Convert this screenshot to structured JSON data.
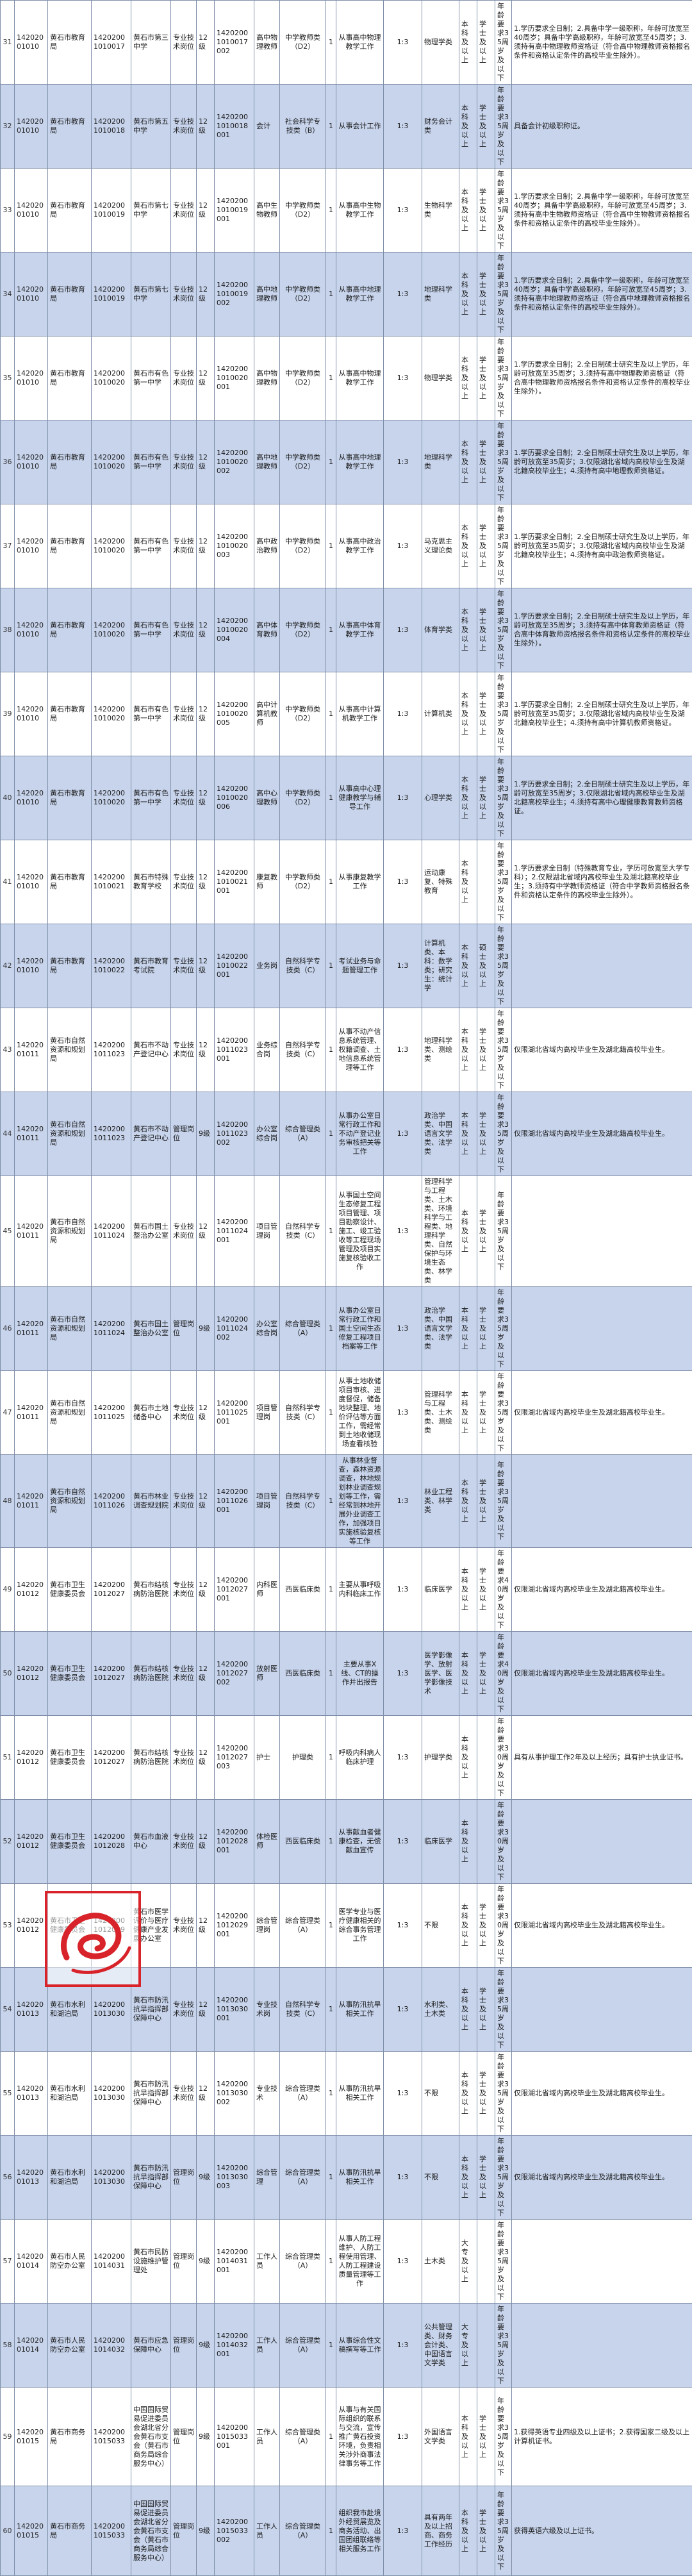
{
  "rows": [
    [
      "31",
      "14202001010",
      "黄石市教育局",
      "14202001010017",
      "黄石市第三中学",
      "专业技术岗位",
      "12级",
      "14202001010017002",
      "高中物理教师",
      "中学教师类（D2）",
      "1",
      "从事高中物理教学工作",
      "1:3",
      "物理学类",
      "本科及以上",
      "学士及以上",
      "年龄要求35周岁及以下",
      "1.学历要求全日制；2.具备中学一级职称，年龄可放宽至40周岁；具备中学高级职称，年龄可放宽至45周岁；3.须持有高中物理教师资格证（符合高中物理教师资格报名条件和资格认定条件的高校毕业生除外）。"
    ],
    [
      "32",
      "14202001010",
      "黄石市教育局",
      "14202001010018",
      "黄石市第五中学",
      "专业技术岗位",
      "12级",
      "14202001010018001",
      "会计",
      "社会科学专技类（B）",
      "1",
      "从事会计工作",
      "1:3",
      "财务会计类",
      "本科及以上",
      "学士及以上",
      "年龄要求35周岁及以下",
      "具备会计初级职称证。"
    ],
    [
      "33",
      "14202001010",
      "黄石市教育局",
      "14202001010019",
      "黄石市第七中学",
      "专业技术岗位",
      "12级",
      "14202001010019001",
      "高中生物教师",
      "中学教师类（D2）",
      "1",
      "从事高中生物教学工作",
      "1:3",
      "生物科学类",
      "本科及以上",
      "学士及以上",
      "年龄要求35周岁及以下",
      "1.学历要求全日制；2.具备中学一级职称，年龄可放宽至40周岁；具备中学高级职称，年龄可放宽至45周岁；3.须持有高中生物教师资格证（符合高中生物教师资格报名条件和资格认定条件的高校毕业生除外）。"
    ],
    [
      "34",
      "14202001010",
      "黄石市教育局",
      "14202001010019",
      "黄石市第七中学",
      "专业技术岗位",
      "12级",
      "14202001010019002",
      "高中地理教师",
      "中学教师类（D2）",
      "1",
      "从事高中地理教学工作",
      "1:3",
      "地理科学类",
      "本科及以上",
      "学士及以上",
      "年龄要求35周岁及以下",
      "1.学历要求全日制；2.具备中学一级职称，年龄可放宽至40周岁；具备中学高级职称，年龄可放宽至45周岁；3.须持有高中地理教师资格证（符合高中地理教师资格报名条件和资格认定条件的高校毕业生除外）。"
    ],
    [
      "35",
      "14202001010",
      "黄石市教育局",
      "14202001010020",
      "黄石市有色第一中学",
      "专业技术岗位",
      "12级",
      "14202001010020001",
      "高中物理教师",
      "中学教师类（D2）",
      "1",
      "从事高中物理教学工作",
      "1:3",
      "物理学类",
      "本科及以上",
      "学士及以上",
      "年龄要求35周岁及以下",
      "1.学历要求全日制；2.全日制硕士研究生及以上学历，年龄可放宽至35周岁；3.须持有高中物理教师资格证（符合高中物理教师资格报名条件和资格认定条件的高校毕业生除外）。"
    ],
    [
      "36",
      "14202001010",
      "黄石市教育局",
      "14202001010020",
      "黄石市有色第一中学",
      "专业技术岗位",
      "12级",
      "14202001010020002",
      "高中地理教师",
      "中学教师类（D2）",
      "1",
      "从事高中地理教学工作",
      "1:3",
      "地理科学类",
      "本科及以上",
      "学士及以上",
      "年龄要求35周岁及以下",
      "1.学历要求全日制；2.全日制硕士研究生及以上学历，年龄可放宽至35周岁；3.仅限湖北省域内高校毕业生及湖北籍高校毕业生；4.须持有高中地理教师资格证。"
    ],
    [
      "37",
      "14202001010",
      "黄石市教育局",
      "14202001010020",
      "黄石市有色第一中学",
      "专业技术岗位",
      "12级",
      "14202001010020003",
      "高中政治教师",
      "中学教师类（D2）",
      "1",
      "从事高中政治教学工作",
      "1:3",
      "马克思主义理论类",
      "本科及以上",
      "学士及以上",
      "年龄要求35周岁及以下",
      "1.学历要求全日制；2.全日制硕士研究生及以上学历，年龄可放宽至35周岁；3.仅限湖北省域内高校毕业生及湖北籍高校毕业生；4.须持有高中政治教师资格证。"
    ],
    [
      "38",
      "14202001010",
      "黄石市教育局",
      "14202001010020",
      "黄石市有色第一中学",
      "专业技术岗位",
      "12级",
      "14202001010020004",
      "高中体育教师",
      "中学教师类（D2）",
      "1",
      "从事高中体育教学工作",
      "1:3",
      "体育学类",
      "本科及以上",
      "学士及以上",
      "年龄要求35周岁及以下",
      "1.学历要求全日制；2.全日制硕士研究生及以上学历，年龄可放宽至35周岁；3.须持有高中体育教师资格证（符合高中体育教师资格报名条件和资格认定条件的高校毕业生除外）。"
    ],
    [
      "39",
      "14202001010",
      "黄石市教育局",
      "14202001010020",
      "黄石市有色第一中学",
      "专业技术岗位",
      "12级",
      "14202001010020005",
      "高中计算机教师",
      "中学教师类（D2）",
      "1",
      "从事高中计算机教学工作",
      "1:3",
      "计算机类",
      "本科及以上",
      "学士及以上",
      "年龄要求35周岁及以下",
      "1.学历要求全日制；2.全日制硕士研究生及以上学历，年龄可放宽至35周岁；3.仅限湖北省域内高校毕业生及湖北籍高校毕业生；4.须持有高中计算机教师资格证。"
    ],
    [
      "40",
      "14202001010",
      "黄石市教育局",
      "14202001010020",
      "黄石市有色第一中学",
      "专业技术岗位",
      "12级",
      "14202001010020006",
      "高中心理教师",
      "中学教师类（D2）",
      "1",
      "从事高中心理健康教学与辅导工作",
      "1:3",
      "心理学类",
      "本科及以上",
      "学士及以上",
      "年龄要求35周岁及以下",
      "1.学历要求全日制；2.全日制硕士研究生及以上学历，年龄可放宽至35周岁；3.仅限湖北省域内高校毕业生及湖北籍高校毕业生；4.须持有高中心理健康教育教师资格证。"
    ],
    [
      "41",
      "14202001010",
      "黄石市教育局",
      "14202001010021",
      "黄石市特殊教育学校",
      "专业技术岗位",
      "12级",
      "14202001010021001",
      "康复教师",
      "中学教师类（D2）",
      "1",
      "从事康复教学工作",
      "1:3",
      "运动康复、特殊教育",
      "本科及以上",
      "",
      "年龄要求35周岁及以下",
      "1.学历要求全日制（特殊教育专业，学历可放宽至大学专科）；2.仅限湖北省域内高校毕业生及湖北籍高校毕业生；3.须持有中学教师资格证（符合中学教师资格报名条件和资格认定条件的高校毕业生除外）。"
    ],
    [
      "42",
      "14202001010",
      "黄石市教育局",
      "14202001010022",
      "黄石市教育考试院",
      "专业技术岗位",
      "12级",
      "14202001010022001",
      "业务岗",
      "自然科学专技类（C）",
      "1",
      "考试业务与命题管理工作",
      "1:3",
      "计算机类、本科：数学类；研究生：统计学",
      "本科及以上",
      "硕士及以上",
      "年龄要求35周岁及以下",
      ""
    ],
    [
      "43",
      "14202001011",
      "黄石市自然资源和规划局",
      "14202001011023",
      "黄石市不动产登记中心",
      "专业技术岗位",
      "12级",
      "14202001011023001",
      "业务综合岗",
      "自然科学专技类（C）",
      "1",
      "从事不动产信息系统管理、权籍调查、土地信息系统管理等工作",
      "1:3",
      "地理科学类、测绘类",
      "本科及以上",
      "学士及以上",
      "年龄要求35周岁及以下",
      "仅限湖北省域内高校毕业生及湖北籍高校毕业生。"
    ],
    [
      "44",
      "14202001011",
      "黄石市自然资源和规划局",
      "14202001011023",
      "黄石市不动产登记中心",
      "管理岗位",
      "9级",
      "14202001011023002",
      "办公室综合岗",
      "综合管理类（A）",
      "1",
      "从事办公室日常行政工作和不动产登记业务审核把关等工作",
      "1:3",
      "政治学类、中国语言文学类、法学类",
      "本科及以上",
      "学士及以上",
      "年龄要求35周岁及以下",
      "仅限湖北省域内高校毕业生及湖北籍高校毕业生。"
    ],
    [
      "45",
      "14202001011",
      "黄石市自然资源和规划局",
      "14202001011024",
      "黄石市国土整治办公室",
      "专业技术岗位",
      "12级",
      "14202001011024001",
      "项目管理岗",
      "自然科学专技类（C）",
      "1",
      "从事国土空间生态修复工程项目管理、项目勘察设计、施工、竣工验收等工程现场管理及项目实施复核验收工作",
      "1:3",
      "管理科学与工程类、土木类、环境科学与工程类、地理科学类、自然保护与环境生态类、林学类",
      "本科及以上",
      "学士及以上",
      "年龄要求35周岁及以下",
      ""
    ],
    [
      "46",
      "14202001011",
      "黄石市自然资源和规划局",
      "14202001011024",
      "黄石市国土整治办公室",
      "管理岗位",
      "9级",
      "14202001011024002",
      "办公室综合岗",
      "综合管理类（A）",
      "1",
      "从事办公室日常行政工作和国土空间生态修复工程项目档案等工作",
      "1:3",
      "政治学类、中国语言文学类、法学类",
      "本科及以上",
      "学士及以上",
      "年龄要求35周岁及以下",
      ""
    ],
    [
      "47",
      "14202001011",
      "黄石市自然资源和规划局",
      "14202001011025",
      "黄石市土地储备中心",
      "专业技术岗位",
      "12级",
      "14202001011025001",
      "项目管理岗",
      "自然科学专技类（C）",
      "1",
      "从事土地收储项目审核、进度督促，储备地块整理、地价评估等方面工作，需经常到土地收储现场查看核验",
      "1:3",
      "管理科学与工程类、土木类、测绘类",
      "本科及以上",
      "学士及以上",
      "年龄要求35周岁及以下",
      "仅限湖北省域内高校毕业生及湖北籍高校毕业生。"
    ],
    [
      "48",
      "14202001011",
      "黄石市自然资源和规划局",
      "14202001011026",
      "黄石市林业调查规划院",
      "专业技术岗位",
      "12级",
      "14202001011026001",
      "项目管理岗",
      "自然科学专技类（C）",
      "1",
      "从事林业督查，森林资源调查，林地规划林业调查规划等工作，需经常到林地开展外业调查工作，加强项目实施核验复核等工作",
      "1:3",
      "林业工程类、林学类",
      "本科及以上",
      "学士及以上",
      "年龄要求35周岁及以下",
      ""
    ],
    [
      "49",
      "14202001012",
      "黄石市卫生健康委员会",
      "14202001012027",
      "黄石市结核病防治医院",
      "专业技术岗位",
      "12级",
      "14202001012027001",
      "内科医师",
      "西医临床类",
      "1",
      "主要从事呼吸内科临床工作",
      "1:3",
      "临床医学",
      "本科及以上",
      "学士及以上",
      "年龄要求40周岁及以下",
      "仅限湖北省域内高校毕业生及湖北籍高校毕业生。"
    ],
    [
      "50",
      "14202001012",
      "黄石市卫生健康委员会",
      "14202001012027",
      "黄石市结核病防治医院",
      "专业技术岗位",
      "12级",
      "14202001012027002",
      "放射医师",
      "西医临床类",
      "1",
      "主要从事X线、CT的操作并出报告",
      "1:3",
      "医学影像学、放射医学、医学影像技术",
      "本科及以上",
      "学士及以上",
      "年龄要求40周岁及以下",
      "仅限湖北省域内高校毕业生及湖北籍高校毕业生。"
    ],
    [
      "51",
      "14202001012",
      "黄石市卫生健康委员会",
      "14202001012027",
      "黄石市结核病防治医院",
      "专业技术岗位",
      "12级",
      "14202001012027003",
      "护士",
      "护理类",
      "1",
      "呼吸内科病人临床护理",
      "1:3",
      "护理学类",
      "本科及以上",
      "",
      "年龄要求30周岁及以下",
      "具有从事护理工作2年及以上经历；具有护士执业证书。"
    ],
    [
      "52",
      "14202001012",
      "黄石市卫生健康委员会",
      "14202001012028",
      "黄石市血液中心",
      "专业技术岗位",
      "12级",
      "14202001012028001",
      "体检医师",
      "西医临床类",
      "1",
      "从事献血者健康检查，无偿献血宣传",
      "1:3",
      "临床医学",
      "本科及以上",
      "",
      "年龄要求30周岁及以下",
      ""
    ],
    [
      "53",
      "14202001012",
      "黄石市卫生健康委员会",
      "14202001012029",
      "黄石市医学评价与医疗健康产业发展办公室",
      "专业技术岗位",
      "12级",
      "14202001012029001",
      "综合管理岗",
      "综合管理类（A）",
      "1",
      "医学专业与医疗健康相关的综合事务管理工作",
      "1:3",
      "不限",
      "本科及以上",
      "学士及以上",
      "年龄要求30周岁及以下",
      "仅限湖北省域内高校毕业生及湖北籍高校毕业生。"
    ],
    [
      "54",
      "14202001013",
      "黄石市水利和湖泊局",
      "14202001013030",
      "黄石市防汛抗旱指挥部保障中心",
      "专业技术岗位",
      "12级",
      "14202001013030001",
      "专业技术岗",
      "自然科学专技类（C）",
      "1",
      "从事防汛抗旱相关工作",
      "1:3",
      "水利类、土木类",
      "本科及以上",
      "学士及以上",
      "年龄要求35周岁及以下",
      ""
    ],
    [
      "55",
      "14202001013",
      "黄石市水利和湖泊局",
      "14202001013030",
      "黄石市防汛抗旱指挥部保障中心",
      "专业技术岗位",
      "12级",
      "14202001013030002",
      "专业技术",
      "综合管理类（A）",
      "1",
      "从事防汛抗旱相关工作",
      "1:3",
      "不限",
      "本科及以上",
      "学士及以上",
      "年龄要求35周岁及以下",
      "仅限湖北省域内高校毕业生及湖北籍高校毕业生。"
    ],
    [
      "56",
      "14202001013",
      "黄石市水利和湖泊局",
      "14202001013030",
      "黄石市防汛抗旱指挥部保障中心",
      "管理岗位",
      "9级",
      "14202001013030003",
      "综合管理",
      "综合管理类（A）",
      "1",
      "从事防汛抗旱相关工作",
      "1:3",
      "不限",
      "本科及以上",
      "学士及以上",
      "年龄要求35周岁及以下",
      "仅限湖北省域内高校毕业生及湖北籍高校毕业生。"
    ],
    [
      "57",
      "14202001014",
      "黄石市人民防空办公室",
      "14202001014031",
      "黄石市民防设施维护管理处",
      "管理岗位",
      "9级",
      "14202001014031001",
      "工作人员",
      "综合管理类（A）",
      "1",
      "从事人防工程维护、人防工程使用管理、人防工程建设质量管理等工作",
      "1:3",
      "土木类",
      "大专及以上",
      "",
      "年龄要求35周岁及以下",
      ""
    ],
    [
      "58",
      "14202001014",
      "黄石市人民防空办公室",
      "14202001014032",
      "黄石市应急保障中心",
      "管理岗位",
      "9级",
      "14202001014032001",
      "工作人员",
      "综合管理类（A）",
      "1",
      "从事综合性文稿撰写等工作",
      "1:3",
      "公共管理类、财务会计类、中国语言文学类",
      "大专及以上",
      "",
      "年龄要求35周岁及以下",
      ""
    ],
    [
      "59",
      "14202001015",
      "黄石市商务局",
      "14202001015033",
      "中国国际贸易促进委员会湖北省分会黄石市支会（黄石市商务局综合服务中心）",
      "管理岗位",
      "9级",
      "14202001015033001",
      "工作人员",
      "综合管理类（A）",
      "1",
      "从事与有关国际组织的联系与交流，宣传推广黄石投资环境，负责相关涉外商事法律事务等工作",
      "1:3",
      "外国语言文学类",
      "本科及以上",
      "学士及以上",
      "年龄要求35周岁及以下",
      "1.获得英语专业四级及以上证书；2.获得国家二级及以上计算机证书。"
    ],
    [
      "60",
      "14202001015",
      "黄石市商务局",
      "14202001015033",
      "中国国际贸易促进委员会湖北省分会黄石市支会（黄石市商务局综合服务中心）",
      "管理岗位",
      "9级",
      "14202001015033002",
      "工作人员",
      "综合管理类（A）",
      "1",
      "组织我市赴境外经贸展览及商务活动、出国团组联络等相关服务工作",
      "1:3",
      "具有两年及以上招商、商务工作经历",
      "本科及以上",
      "学士及以上",
      "年龄要求35周岁及以下",
      "获得英语六级及以上证书。"
    ]
  ],
  "logo": {
    "text": "东楚晚报",
    "color": "#d8232a"
  }
}
